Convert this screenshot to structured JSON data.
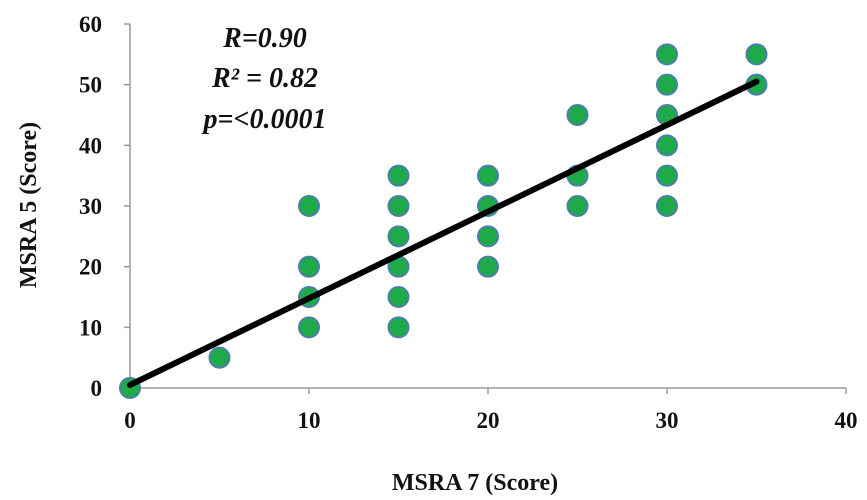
{
  "chart_data": {
    "type": "scatter",
    "xlabel": "MSRA 7 (Score)",
    "ylabel": "MSRA 5 (Score)",
    "xlim": [
      0,
      40
    ],
    "ylim": [
      0,
      60
    ],
    "x_ticks": [
      0,
      10,
      20,
      30,
      40
    ],
    "y_ticks": [
      0,
      10,
      20,
      30,
      40,
      50,
      60
    ],
    "grid": false,
    "legend": "none",
    "annotations": [
      "R=0.90",
      "R² = 0.82",
      "p=<0.0001"
    ],
    "annotation_placement": "top-left",
    "colors": {
      "marker_fill": "#1faa4a",
      "marker_edge": "#4a7fa8",
      "trend_line": "#000000",
      "axis": "#999999"
    },
    "points": [
      {
        "x": 0,
        "y": 0
      },
      {
        "x": 5,
        "y": 5
      },
      {
        "x": 10,
        "y": 10
      },
      {
        "x": 10,
        "y": 15
      },
      {
        "x": 10,
        "y": 20
      },
      {
        "x": 10,
        "y": 30
      },
      {
        "x": 15,
        "y": 10
      },
      {
        "x": 15,
        "y": 15
      },
      {
        "x": 15,
        "y": 20
      },
      {
        "x": 15,
        "y": 25
      },
      {
        "x": 15,
        "y": 30
      },
      {
        "x": 15,
        "y": 35
      },
      {
        "x": 20,
        "y": 20
      },
      {
        "x": 20,
        "y": 25
      },
      {
        "x": 20,
        "y": 30
      },
      {
        "x": 20,
        "y": 35
      },
      {
        "x": 25,
        "y": 30
      },
      {
        "x": 25,
        "y": 35
      },
      {
        "x": 25,
        "y": 45
      },
      {
        "x": 30,
        "y": 30
      },
      {
        "x": 30,
        "y": 35
      },
      {
        "x": 30,
        "y": 40
      },
      {
        "x": 30,
        "y": 45
      },
      {
        "x": 30,
        "y": 50
      },
      {
        "x": 30,
        "y": 55
      },
      {
        "x": 35,
        "y": 50
      },
      {
        "x": 35,
        "y": 55
      }
    ],
    "trendline": {
      "x": [
        0,
        35
      ],
      "y": [
        0.5,
        50.5
      ]
    }
  }
}
